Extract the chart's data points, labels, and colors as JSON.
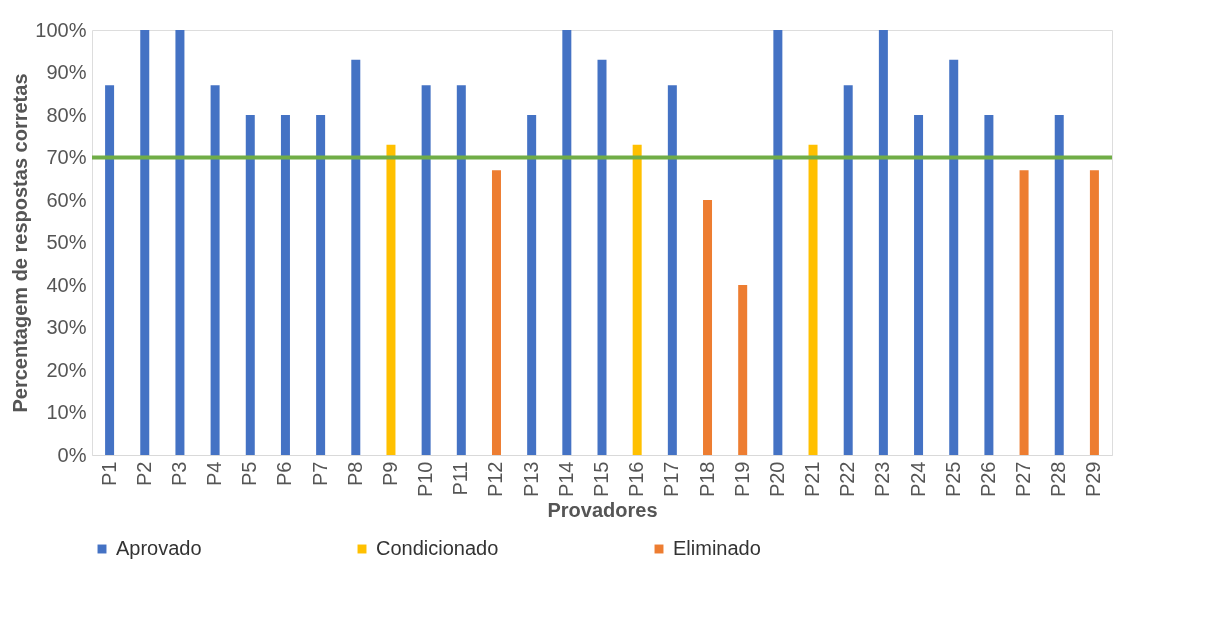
{
  "chart_data": {
    "type": "bar",
    "xlabel": "Provadores",
    "ylabel": "Percentagem de respostas corretas",
    "categories": [
      "P1",
      "P2",
      "P3",
      "P4",
      "P5",
      "P6",
      "P7",
      "P8",
      "P9",
      "P10",
      "P11",
      "P12",
      "P13",
      "P14",
      "P15",
      "P16",
      "P17",
      "P18",
      "P19",
      "P20",
      "P21",
      "P22",
      "P23",
      "P24",
      "P25",
      "P26",
      "P27",
      "P28",
      "P29"
    ],
    "series": [
      {
        "name": "Aprovado",
        "color": "#4472c4",
        "values": [
          87,
          100,
          100,
          87,
          80,
          80,
          80,
          93,
          null,
          87,
          87,
          null,
          80,
          100,
          93,
          null,
          87,
          null,
          null,
          100,
          null,
          87,
          100,
          80,
          93,
          80,
          null,
          80,
          null
        ]
      },
      {
        "name": "Condicionado",
        "color": "#ffc000",
        "values": [
          null,
          null,
          null,
          null,
          null,
          null,
          null,
          null,
          73,
          null,
          null,
          null,
          null,
          null,
          null,
          73,
          null,
          null,
          null,
          null,
          73,
          null,
          null,
          null,
          null,
          null,
          null,
          null,
          null
        ]
      },
      {
        "name": "Eliminado",
        "color": "#ed7d31",
        "values": [
          null,
          null,
          null,
          null,
          null,
          null,
          null,
          null,
          null,
          null,
          null,
          67,
          null,
          null,
          null,
          null,
          null,
          60,
          40,
          null,
          null,
          null,
          null,
          null,
          null,
          null,
          67,
          null,
          67
        ]
      }
    ],
    "ylim": [
      0,
      100
    ],
    "yticks": [
      {
        "value": 0,
        "label": "0%"
      },
      {
        "value": 10,
        "label": "10%"
      },
      {
        "value": 20,
        "label": "20%"
      },
      {
        "value": 30,
        "label": "30%"
      },
      {
        "value": 40,
        "label": "40%"
      },
      {
        "value": 50,
        "label": "50%"
      },
      {
        "value": 60,
        "label": "60%"
      },
      {
        "value": 70,
        "label": "70%"
      },
      {
        "value": 80,
        "label": "80%"
      },
      {
        "value": 90,
        "label": "90%"
      },
      {
        "value": 100,
        "label": "100%"
      }
    ],
    "ref_lines": [
      {
        "axis": "y",
        "value": 70,
        "color": "#70ad47"
      }
    ],
    "grid": false,
    "legend": "bottom"
  }
}
